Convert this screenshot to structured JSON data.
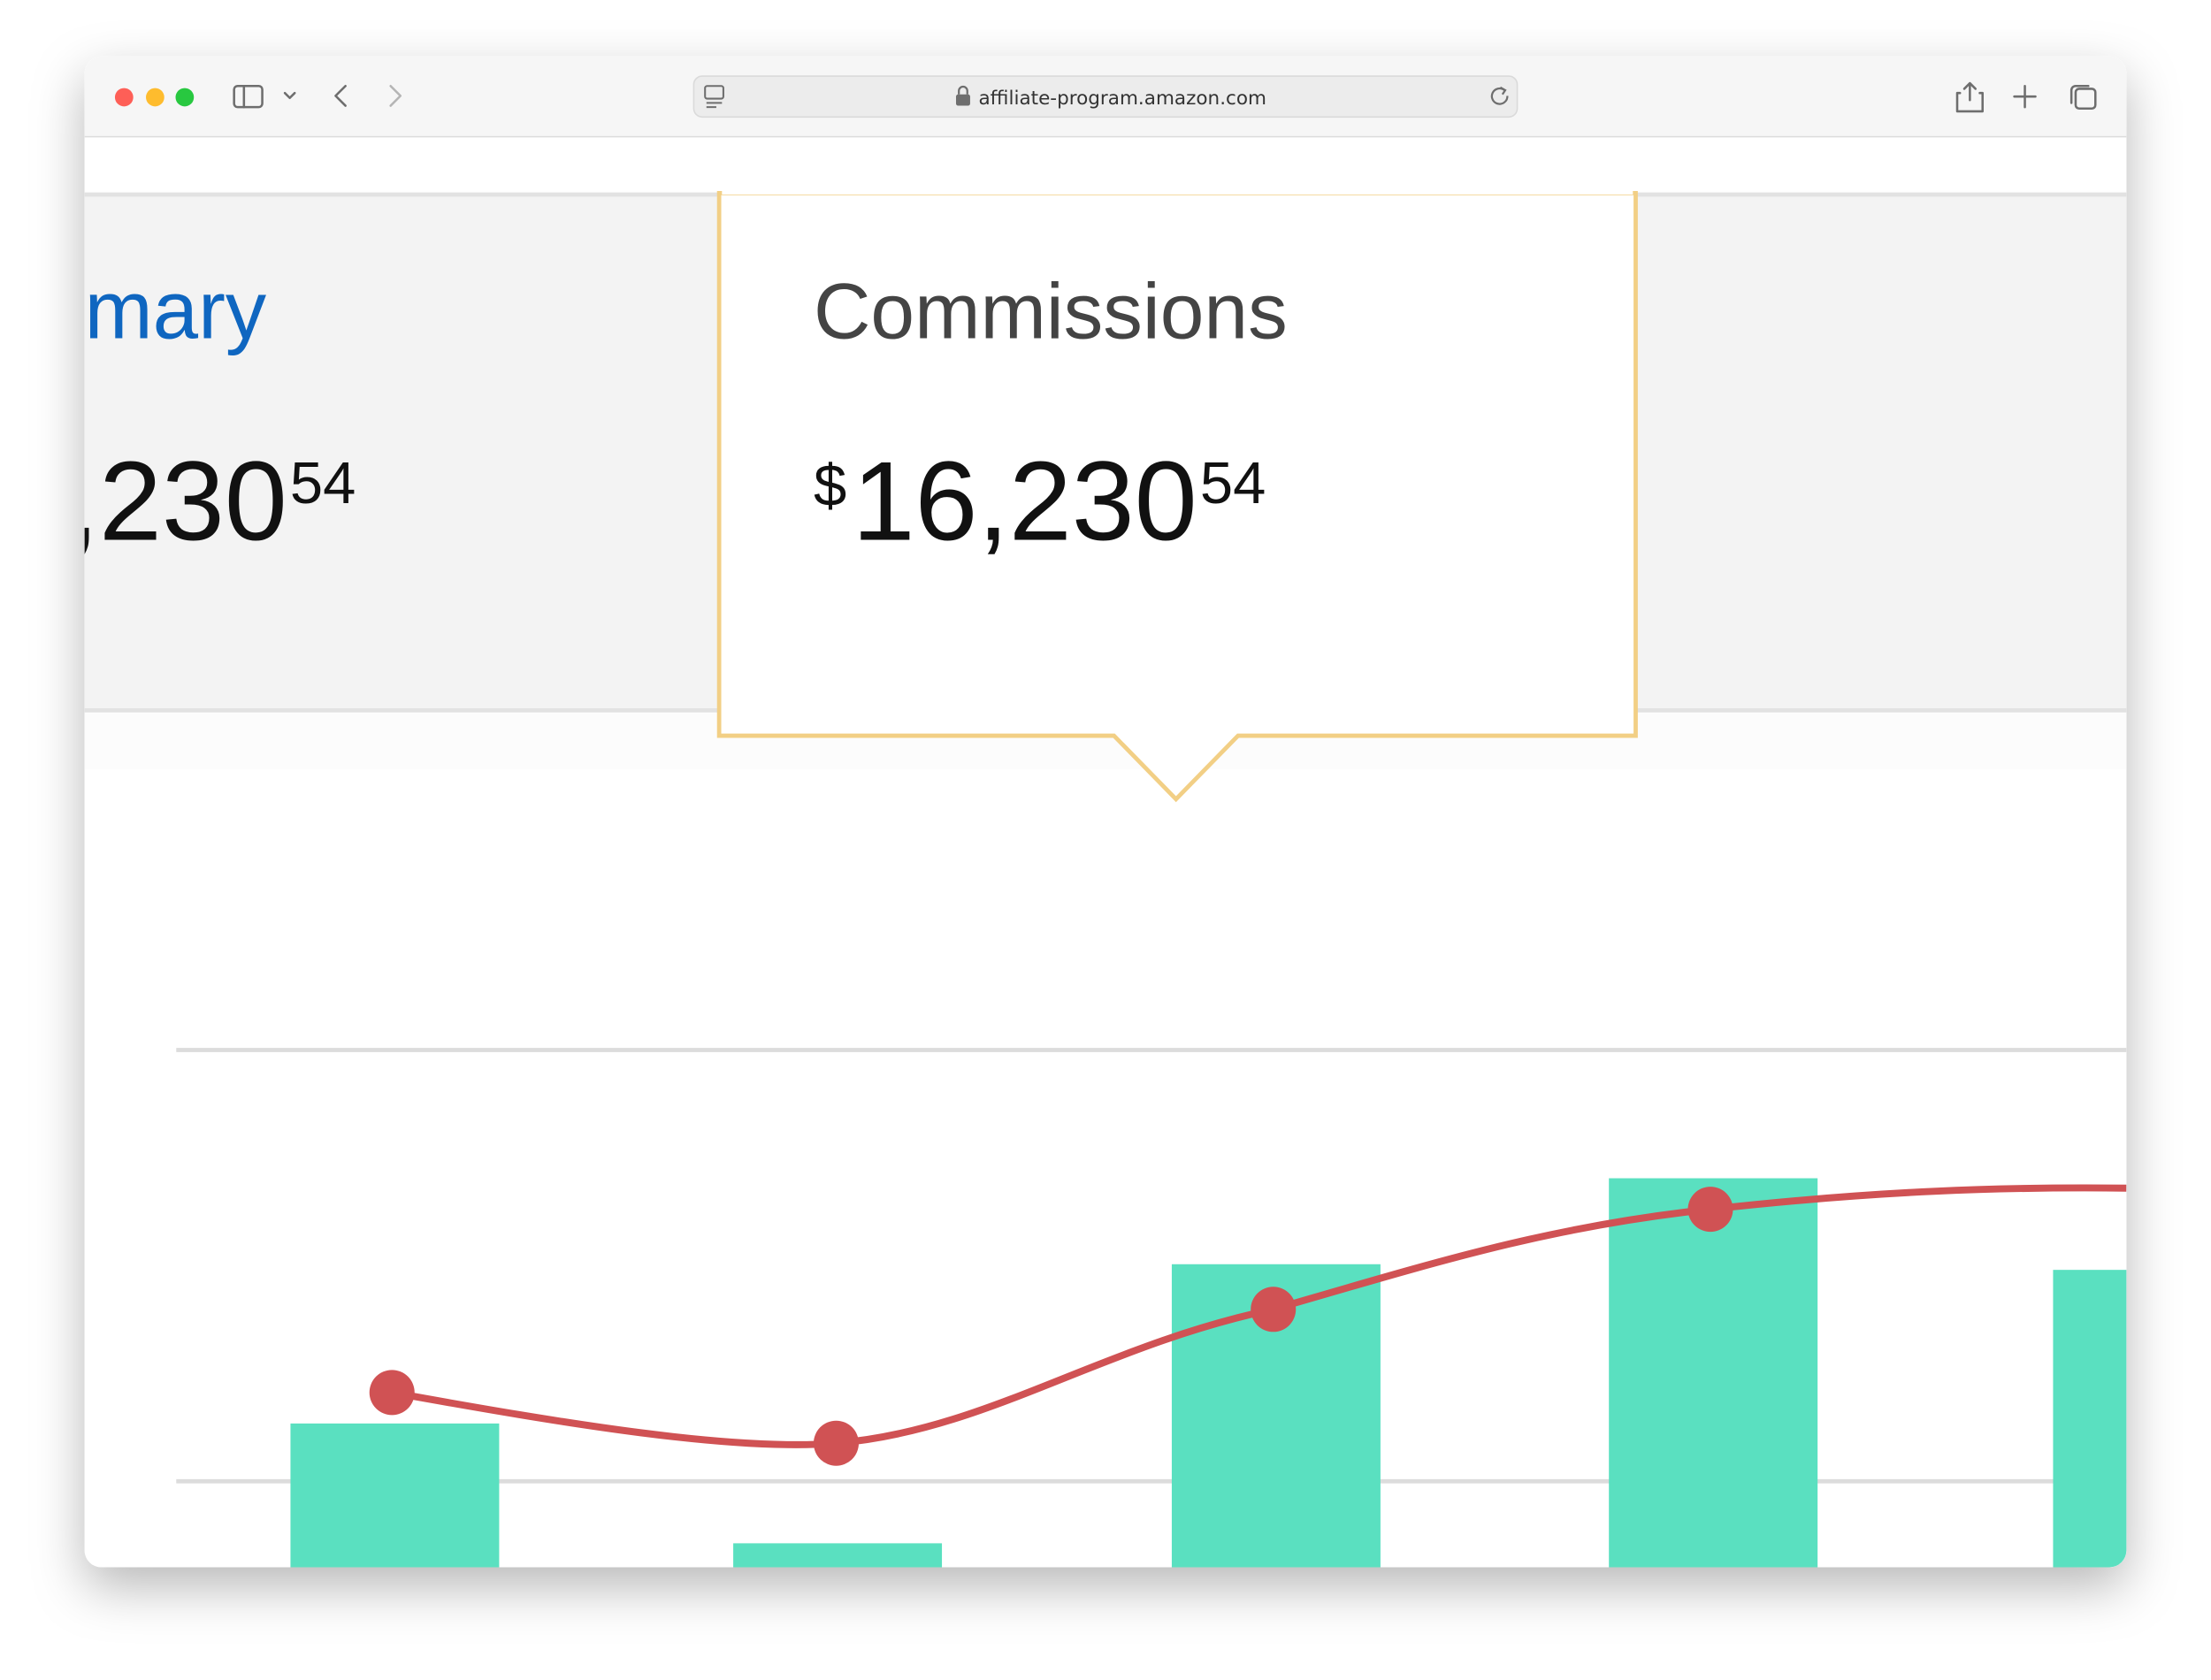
{
  "browser": {
    "url": "affiliate-program.amazon.com"
  },
  "cards": [
    {
      "title": "mary",
      "amount": ",230",
      "cents": "54"
    },
    {
      "title": "Commissions",
      "currency": "$",
      "amount": "16,230",
      "cents": "54"
    }
  ]
}
